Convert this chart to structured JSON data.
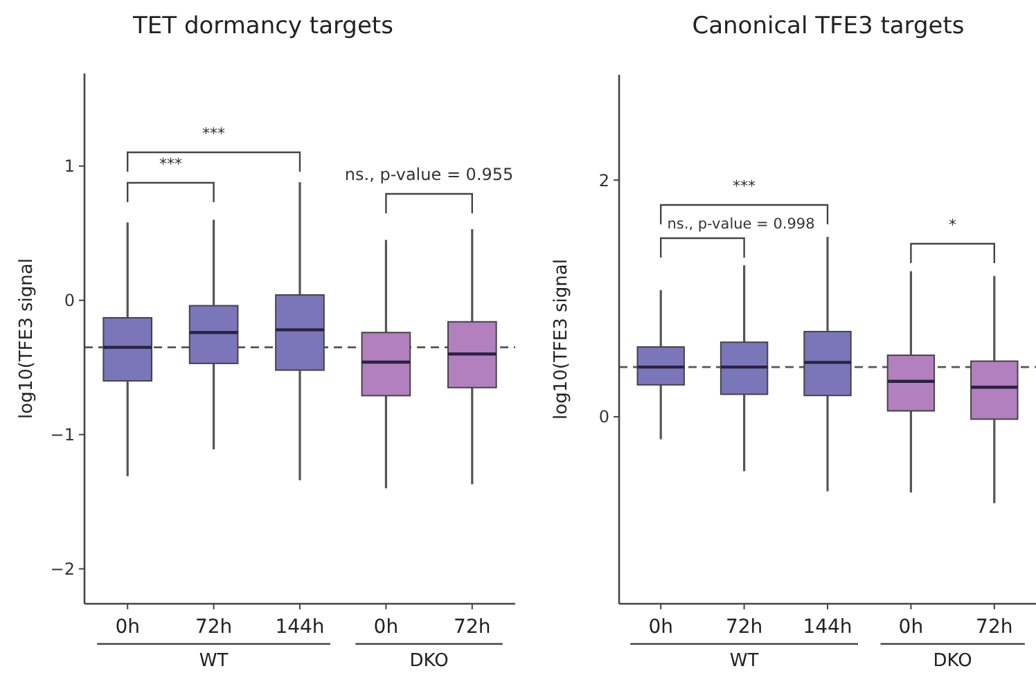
{
  "chart_data": [
    {
      "type": "box",
      "title": "TET dormancy targets",
      "ylabel": "log10(TFE3 signal",
      "categories": [
        "0h",
        "72h",
        "144h",
        "0h",
        "72h"
      ],
      "colors": [
        "#7b75b9",
        "#7b75b9",
        "#7b75b9",
        "#b27fbf",
        "#b27fbf"
      ],
      "ylim": [
        -2.26,
        1.69
      ],
      "yticks": [
        {
          "value": -2,
          "label": "−2"
        },
        {
          "value": -1,
          "label": "−1"
        },
        0,
        1
      ],
      "grid": false,
      "boxes": [
        {
          "low": -1.31,
          "q1": -0.6,
          "median": -0.35,
          "q3": -0.13,
          "high": 0.58
        },
        {
          "low": -1.11,
          "q1": -0.47,
          "median": -0.24,
          "q3": -0.04,
          "high": 0.6
        },
        {
          "low": -1.34,
          "q1": -0.52,
          "median": -0.22,
          "q3": 0.04,
          "high": 0.88
        },
        {
          "low": -1.4,
          "q1": -0.71,
          "median": -0.46,
          "q3": -0.24,
          "high": 0.45
        },
        {
          "low": -1.37,
          "q1": -0.65,
          "median": -0.4,
          "q3": -0.16,
          "high": 0.53
        }
      ],
      "ref_lines": [
        {
          "axis": "y",
          "value": -0.35,
          "line_style": "dashed"
        }
      ],
      "annotations": [
        "***",
        "***",
        "ns., p-value = 0.955",
        "WT",
        "DKO"
      ]
    },
    {
      "type": "box",
      "title": "Canonical TFE3 targets",
      "ylabel": "log10(TFE3 signal",
      "categories": [
        "0h",
        "72h",
        "144h",
        "0h",
        "72h"
      ],
      "colors": [
        "#7b75b9",
        "#7b75b9",
        "#7b75b9",
        "#b27fbf",
        "#b27fbf"
      ],
      "ylim": [
        -1.58,
        2.89
      ],
      "yticks": [
        0,
        2
      ],
      "grid": false,
      "boxes": [
        {
          "low": -0.19,
          "q1": 0.27,
          "median": 0.42,
          "q3": 0.59,
          "high": 1.07
        },
        {
          "low": -0.46,
          "q1": 0.19,
          "median": 0.42,
          "q3": 0.63,
          "high": 1.28
        },
        {
          "low": -0.63,
          "q1": 0.18,
          "median": 0.46,
          "q3": 0.72,
          "high": 1.52
        },
        {
          "low": -0.64,
          "q1": 0.05,
          "median": 0.3,
          "q3": 0.52,
          "high": 1.23
        },
        {
          "low": -0.73,
          "q1": -0.02,
          "median": 0.25,
          "q3": 0.47,
          "high": 1.19
        }
      ],
      "ref_lines": [
        {
          "axis": "y",
          "value": 0.42,
          "line_style": "dashed"
        }
      ],
      "annotations": [
        "***",
        "ns., p-value = 0.998",
        "*",
        "WT",
        "DKO"
      ]
    }
  ]
}
